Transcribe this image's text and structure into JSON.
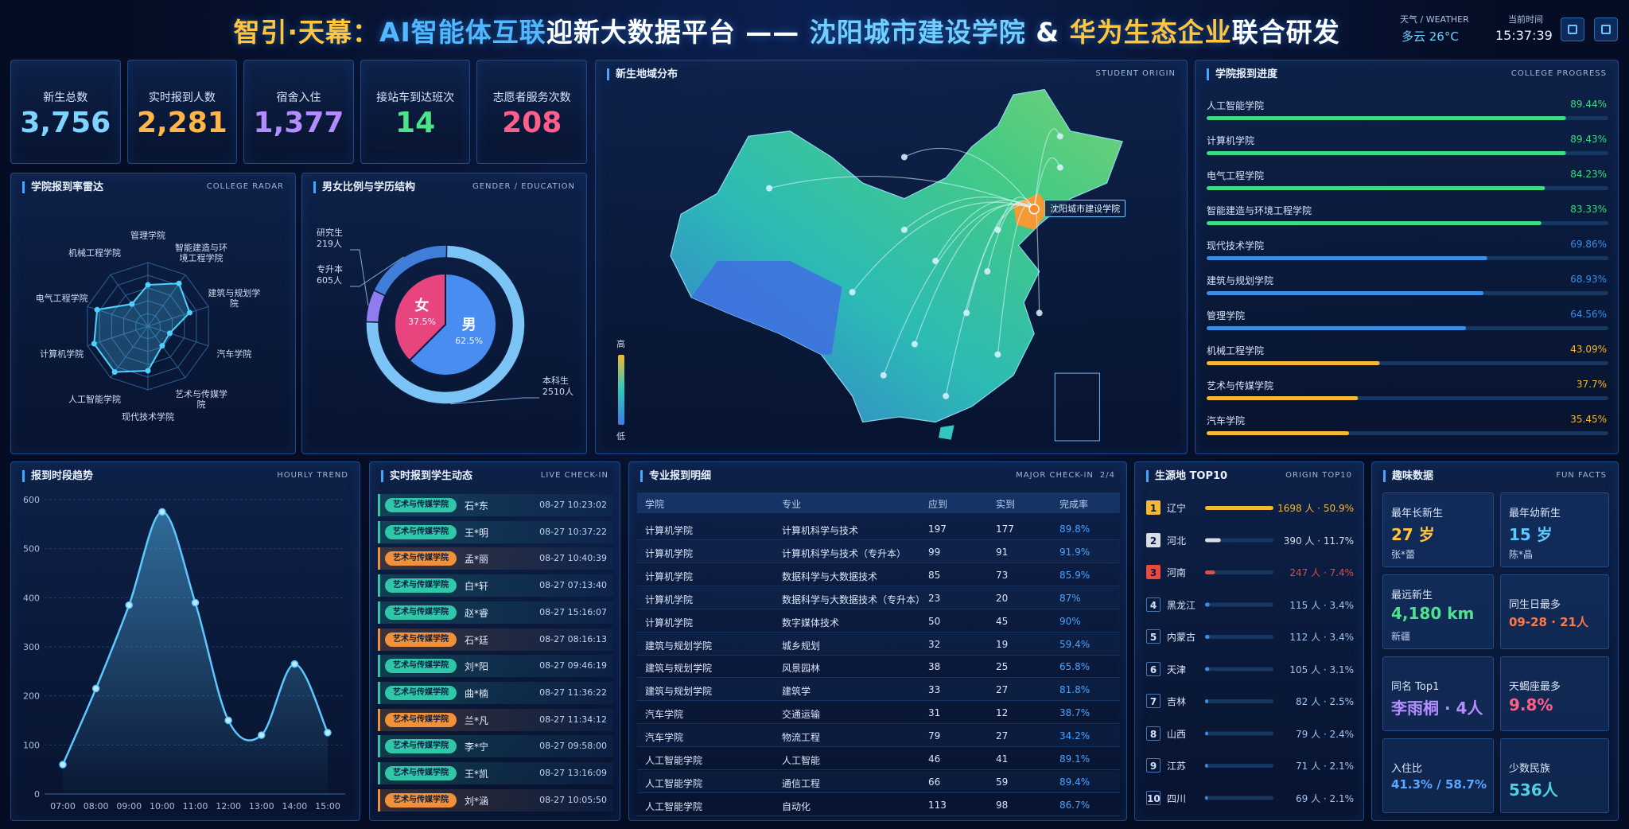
{
  "header": {
    "title_parts": [
      {
        "text": "智引·天幕：",
        "color": "#ffc53d"
      },
      {
        "text": "AI智能体互联",
        "color": "#4fb8ff"
      },
      {
        "text": "迎新大数据平台 —— ",
        "color": "#ffffff"
      },
      {
        "text": "沈阳城市建设学院",
        "color": "#6fd0ff"
      },
      {
        "text": " & ",
        "color": "#ffffff"
      },
      {
        "text": "华为生态企业",
        "color": "#ffc53d"
      },
      {
        "text": "联合研发",
        "color": "#ffffff"
      }
    ],
    "weather_label": "天气 / WEATHER",
    "weather": "多云 26°C",
    "time_label": "当前时间",
    "time": "15:37:39"
  },
  "kpis": [
    {
      "label": "新生总数",
      "value": "3,756",
      "color": "#7fd4ff"
    },
    {
      "label": "实时报到人数",
      "value": "2,281",
      "color": "#ffb547"
    },
    {
      "label": "宿舍入住",
      "value": "1,377",
      "color": "#b58cff"
    },
    {
      "label": "接站车到达班次",
      "value": "14",
      "color": "#4de38a"
    },
    {
      "label": "志愿者服务次数",
      "value": "208",
      "color": "#ff5d8a"
    }
  ],
  "chart_data": [
    {
      "type": "radar",
      "title": "学院报到率雷达",
      "subtitle": "COLLEGE RADAR",
      "categories": [
        "管理学院",
        "智能建造与环境工程学院",
        "建筑与规划学院",
        "汽车学院",
        "艺术与传媒学院",
        "现代技术学院",
        "人工智能学院",
        "计算机学院",
        "电气工程学院",
        "机械工程学院"
      ],
      "values": [
        65,
        83,
        69,
        36,
        38,
        70,
        89,
        89,
        84,
        43
      ],
      "rlim": [
        0,
        100
      ],
      "rticks": [
        20,
        40,
        60,
        80,
        100
      ],
      "color": "#4fd1ff"
    },
    {
      "type": "pie",
      "title": "男女比例与学历结构",
      "subtitle": "GENDER / EDUCATION",
      "categories": [
        "女",
        "男"
      ],
      "values": [
        37.5,
        62.5
      ],
      "value_labels": [
        "37.5%",
        "62.5%"
      ],
      "colors": [
        "#e8457f",
        "#4a8df0"
      ],
      "ring": {
        "categories": [
          "研究生",
          "专升本",
          "本科生"
        ],
        "values": [
          219,
          605,
          2510
        ],
        "value_labels": [
          "219人",
          "605人",
          "2510人"
        ],
        "colors": [
          "#8f7cf0",
          "#3f7fd9",
          "#7cc4f5"
        ]
      }
    },
    {
      "type": "hbar",
      "title": "学院报到进度",
      "subtitle": "COLLEGE PROGRESS",
      "categories": [
        "人工智能学院",
        "计算机学院",
        "电气工程学院",
        "智能建造与环境工程学院",
        "现代技术学院",
        "建筑与规划学院",
        "管理学院",
        "机械工程学院",
        "艺术与传媒学院",
        "汽车学院"
      ],
      "values": [
        89.44,
        89.43,
        84.23,
        83.33,
        69.86,
        68.93,
        64.56,
        43.09,
        37.7,
        35.45
      ],
      "value_labels": [
        "89.44%",
        "89.43%",
        "84.23%",
        "83.33%",
        "69.86%",
        "68.93%",
        "64.56%",
        "43.09%",
        "37.7%",
        "35.45%"
      ],
      "colors": [
        "#3ddc84",
        "#3ddc84",
        "#3ddc84",
        "#3ddc84",
        "#3a8ee6",
        "#3a8ee6",
        "#3a8ee6",
        "#f5b833",
        "#f5b833",
        "#f5b833"
      ],
      "xlim": [
        0,
        100
      ]
    },
    {
      "type": "line",
      "title": "报到时段趋势",
      "subtitle": "HOURLY TREND",
      "categories": [
        "07:00",
        "08:00",
        "09:00",
        "10:00",
        "11:00",
        "12:00",
        "13:00",
        "14:00",
        "15:00"
      ],
      "values": [
        60,
        215,
        385,
        575,
        390,
        150,
        120,
        265,
        125
      ],
      "ylim": [
        0,
        600
      ],
      "yticks": [
        0,
        100,
        200,
        300,
        400,
        500,
        600
      ],
      "grid": true,
      "color": "#5cc8ff"
    },
    {
      "type": "bar_list",
      "title": "生源地 TOP10",
      "subtitle": "ORIGIN TOP10",
      "ranks": [
        1,
        2,
        3,
        4,
        5,
        6,
        7,
        8,
        9,
        10
      ],
      "categories": [
        "辽宁",
        "河北",
        "河南",
        "黑龙江",
        "内蒙古",
        "天津",
        "吉林",
        "山西",
        "江苏",
        "四川"
      ],
      "values": [
        1698,
        390,
        247,
        115,
        112,
        105,
        82,
        79,
        71,
        69
      ],
      "value_labels": [
        "1698 人 · 50.9%",
        "390 人 · 11.7%",
        "247 人 · 7.4%",
        "115 人 · 3.4%",
        "112 人 · 3.4%",
        "105 人 · 3.1%",
        "82 人 · 2.5%",
        "79 人 · 2.4%",
        "71 人 · 2.1%",
        "69 人 · 2.1%"
      ],
      "colors": [
        "#f5b833",
        "#d8dde6",
        "#e84a3c",
        "#3a8ee6",
        "#3a8ee6",
        "#3a8ee6",
        "#3a8ee6",
        "#3a8ee6",
        "#3a8ee6",
        "#3a8ee6"
      ],
      "xlim": [
        0,
        1700
      ]
    }
  ],
  "map": {
    "title": "新生地域分布",
    "subtitle": "STUDENT ORIGIN",
    "marker": "沈阳城市建设学院",
    "legend_high": "高",
    "legend_low": "低"
  },
  "checkins": {
    "title": "实时报到学生动态",
    "subtitle": "LIVE CHECK-IN",
    "rows": [
      {
        "college": "艺术与传媒学院",
        "name": "石*东",
        "time": "08-27 10:23:02",
        "color": "#2fc7a8"
      },
      {
        "college": "艺术与传媒学院",
        "name": "王*明",
        "time": "08-27 10:37:22",
        "color": "#2fc7a8"
      },
      {
        "college": "艺术与传媒学院",
        "name": "孟*丽",
        "time": "08-27 10:40:39",
        "color": "#f0913a"
      },
      {
        "college": "艺术与传媒学院",
        "name": "白*轩",
        "time": "08-27 07:13:40",
        "color": "#2fc7a8"
      },
      {
        "college": "艺术与传媒学院",
        "name": "赵*睿",
        "time": "08-27 15:16:07",
        "color": "#2fc7a8"
      },
      {
        "college": "艺术与传媒学院",
        "name": "石*廷",
        "time": "08-27 08:16:13",
        "color": "#f0913a"
      },
      {
        "college": "艺术与传媒学院",
        "name": "刘*阳",
        "time": "08-27 09:46:19",
        "color": "#2fc7a8"
      },
      {
        "college": "艺术与传媒学院",
        "name": "曲*楠",
        "time": "08-27 11:36:22",
        "color": "#2fc7a8"
      },
      {
        "college": "艺术与传媒学院",
        "name": "兰*凡",
        "time": "08-27 11:34:12",
        "color": "#f0913a"
      },
      {
        "college": "艺术与传媒学院",
        "name": "李*宁",
        "time": "08-27 09:58:00",
        "color": "#2fc7a8"
      },
      {
        "college": "艺术与传媒学院",
        "name": "王*凯",
        "time": "08-27 13:16:09",
        "color": "#2fc7a8"
      },
      {
        "college": "艺术与传媒学院",
        "name": "刘*涵",
        "time": "08-27 10:05:50",
        "color": "#f0913a"
      }
    ]
  },
  "majors": {
    "title": "专业报到明细",
    "subtitle": "MAJOR CHECK-IN",
    "page": "2/4",
    "columns": [
      "学院",
      "专业",
      "应到",
      "实到",
      "完成率"
    ],
    "rows": [
      [
        "计算机学院",
        "计算机科学与技术",
        "197",
        "177",
        "89.8%"
      ],
      [
        "计算机学院",
        "计算机科学与技术（专升本）",
        "99",
        "91",
        "91.9%"
      ],
      [
        "计算机学院",
        "数据科学与大数据技术",
        "85",
        "73",
        "85.9%"
      ],
      [
        "计算机学院",
        "数据科学与大数据技术（专升本）",
        "23",
        "20",
        "87%"
      ],
      [
        "计算机学院",
        "数字媒体技术",
        "50",
        "45",
        "90%"
      ],
      [
        "建筑与规划学院",
        "城乡规划",
        "32",
        "19",
        "59.4%"
      ],
      [
        "建筑与规划学院",
        "风景园林",
        "38",
        "25",
        "65.8%"
      ],
      [
        "建筑与规划学院",
        "建筑学",
        "33",
        "27",
        "81.8%"
      ],
      [
        "汽车学院",
        "交通运输",
        "31",
        "12",
        "38.7%"
      ],
      [
        "汽车学院",
        "物流工程",
        "79",
        "27",
        "34.2%"
      ],
      [
        "人工智能学院",
        "人工智能",
        "46",
        "41",
        "89.1%"
      ],
      [
        "人工智能学院",
        "通信工程",
        "66",
        "59",
        "89.4%"
      ],
      [
        "人工智能学院",
        "自动化",
        "113",
        "98",
        "86.7%"
      ]
    ]
  },
  "fun_facts": {
    "title": "趣味数据",
    "subtitle": "FUN FACTS",
    "items": [
      {
        "label": "最年长新生",
        "value": "27 岁",
        "note": "张*蕾",
        "color": "#ffc53d"
      },
      {
        "label": "最年幼新生",
        "value": "15 岁",
        "note": "陈*晶",
        "color": "#5cc8ff"
      },
      {
        "label": "最远新生",
        "value": "4,180 km",
        "note": "新疆",
        "color": "#4de38a"
      },
      {
        "label": "同生日最多",
        "value": "09-28 · 21人",
        "color": "#ff7a45"
      },
      {
        "label": "同名 Top1",
        "value": "李雨桐 · 4人",
        "color": "#b58cff"
      },
      {
        "label": "天蝎座最多",
        "value": "9.8%",
        "color": "#ff5d8a"
      },
      {
        "label": "入住比",
        "value": "41.3% / 58.7%",
        "color": "#5ca8ff"
      },
      {
        "label": "少数民族",
        "value": "536人",
        "color": "#4fd1e0"
      }
    ]
  }
}
